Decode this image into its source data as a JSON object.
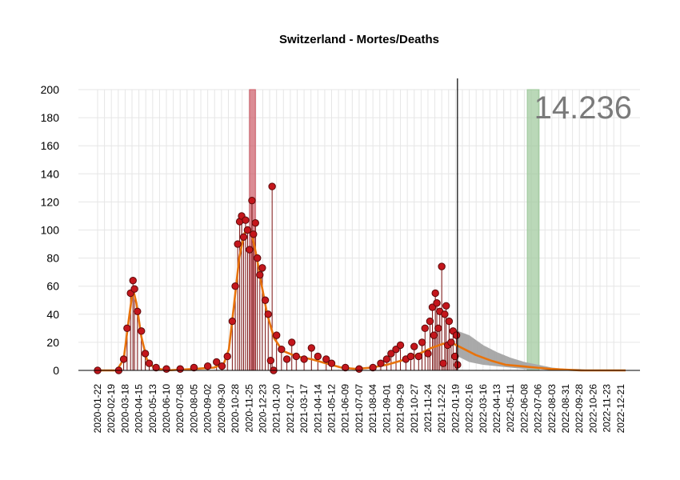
{
  "chart_data": {
    "type": "scatter",
    "title": "Switzerland - Mortes/Deaths",
    "xlabel": "",
    "ylabel": "",
    "ylim": [
      0,
      200
    ],
    "yticks": [
      0,
      20,
      40,
      60,
      80,
      100,
      120,
      140,
      160,
      180,
      200
    ],
    "xlim": [
      "2020-01-22",
      "2022-12-31"
    ],
    "xticks": [
      "2020-01-22",
      "2020-02-19",
      "2020-03-18",
      "2020-04-15",
      "2020-05-13",
      "2020-06-10",
      "2020-07-08",
      "2020-08-05",
      "2020-09-02",
      "2020-09-30",
      "2020-10-28",
      "2020-11-25",
      "2020-12-23",
      "2021-01-20",
      "2021-02-17",
      "2021-03-17",
      "2021-04-14",
      "2021-05-12",
      "2021-06-09",
      "2021-07-07",
      "2021-08-04",
      "2021-09-01",
      "2021-09-29",
      "2021-10-27",
      "2021-11-24",
      "2021-12-22",
      "2022-01-19",
      "2022-02-16",
      "2022-03-16",
      "2022-04-13",
      "2022-05-11",
      "2022-06-08",
      "2022-07-06",
      "2022-08-03",
      "2022-08-31",
      "2022-09-28",
      "2022-10-26",
      "2022-11-23",
      "2022-12-21"
    ],
    "grid": true,
    "last_observed_date": "2022-01-23",
    "annotation_value": "14.236",
    "highlight_peak_band": {
      "start": "2020-11-26",
      "end": "2020-12-08",
      "color": "#cc5b66"
    },
    "highlight_forecast_band": {
      "start": "2022-06-14",
      "end": "2022-07-08",
      "color": "#9cc89a"
    },
    "observed_daily_deaths": [
      {
        "date": "2020-01-22",
        "value": 0
      },
      {
        "date": "2020-03-05",
        "value": 0
      },
      {
        "date": "2020-03-15",
        "value": 8
      },
      {
        "date": "2020-03-22",
        "value": 30
      },
      {
        "date": "2020-03-29",
        "value": 55
      },
      {
        "date": "2020-04-03",
        "value": 64
      },
      {
        "date": "2020-04-06",
        "value": 58
      },
      {
        "date": "2020-04-12",
        "value": 42
      },
      {
        "date": "2020-04-20",
        "value": 28
      },
      {
        "date": "2020-04-28",
        "value": 12
      },
      {
        "date": "2020-05-06",
        "value": 5
      },
      {
        "date": "2020-05-20",
        "value": 2
      },
      {
        "date": "2020-06-10",
        "value": 1
      },
      {
        "date": "2020-07-08",
        "value": 1
      },
      {
        "date": "2020-08-05",
        "value": 2
      },
      {
        "date": "2020-09-02",
        "value": 3
      },
      {
        "date": "2020-09-20",
        "value": 6
      },
      {
        "date": "2020-10-01",
        "value": 3
      },
      {
        "date": "2020-10-12",
        "value": 10
      },
      {
        "date": "2020-10-22",
        "value": 35
      },
      {
        "date": "2020-10-28",
        "value": 60
      },
      {
        "date": "2020-11-02",
        "value": 90
      },
      {
        "date": "2020-11-06",
        "value": 106
      },
      {
        "date": "2020-11-10",
        "value": 110
      },
      {
        "date": "2020-11-14",
        "value": 95
      },
      {
        "date": "2020-11-18",
        "value": 107
      },
      {
        "date": "2020-11-22",
        "value": 100
      },
      {
        "date": "2020-11-26",
        "value": 86
      },
      {
        "date": "2020-12-01",
        "value": 121
      },
      {
        "date": "2020-12-04",
        "value": 97
      },
      {
        "date": "2020-12-08",
        "value": 105
      },
      {
        "date": "2020-12-12",
        "value": 80
      },
      {
        "date": "2020-12-17",
        "value": 68
      },
      {
        "date": "2020-12-22",
        "value": 73
      },
      {
        "date": "2020-12-28",
        "value": 50
      },
      {
        "date": "2021-01-03",
        "value": 40
      },
      {
        "date": "2021-01-08",
        "value": 7
      },
      {
        "date": "2021-01-11",
        "value": 131
      },
      {
        "date": "2021-01-14",
        "value": 0
      },
      {
        "date": "2021-01-20",
        "value": 25
      },
      {
        "date": "2021-01-30",
        "value": 15
      },
      {
        "date": "2021-02-10",
        "value": 8
      },
      {
        "date": "2021-02-20",
        "value": 20
      },
      {
        "date": "2021-03-01",
        "value": 10
      },
      {
        "date": "2021-03-17",
        "value": 8
      },
      {
        "date": "2021-04-01",
        "value": 16
      },
      {
        "date": "2021-04-14",
        "value": 10
      },
      {
        "date": "2021-05-01",
        "value": 8
      },
      {
        "date": "2021-05-12",
        "value": 5
      },
      {
        "date": "2021-06-09",
        "value": 2
      },
      {
        "date": "2021-07-07",
        "value": 1
      },
      {
        "date": "2021-08-04",
        "value": 2
      },
      {
        "date": "2021-08-20",
        "value": 5
      },
      {
        "date": "2021-09-01",
        "value": 8
      },
      {
        "date": "2021-09-10",
        "value": 12
      },
      {
        "date": "2021-09-20",
        "value": 15
      },
      {
        "date": "2021-09-29",
        "value": 18
      },
      {
        "date": "2021-10-10",
        "value": 8
      },
      {
        "date": "2021-10-20",
        "value": 10
      },
      {
        "date": "2021-10-27",
        "value": 17
      },
      {
        "date": "2021-11-05",
        "value": 10
      },
      {
        "date": "2021-11-12",
        "value": 20
      },
      {
        "date": "2021-11-18",
        "value": 30
      },
      {
        "date": "2021-11-24",
        "value": 12
      },
      {
        "date": "2021-11-28",
        "value": 35
      },
      {
        "date": "2021-12-03",
        "value": 45
      },
      {
        "date": "2021-12-06",
        "value": 25
      },
      {
        "date": "2021-12-09",
        "value": 55
      },
      {
        "date": "2021-12-12",
        "value": 48
      },
      {
        "date": "2021-12-15",
        "value": 30
      },
      {
        "date": "2021-12-18",
        "value": 42
      },
      {
        "date": "2021-12-22",
        "value": 74
      },
      {
        "date": "2021-12-25",
        "value": 5
      },
      {
        "date": "2021-12-28",
        "value": 40
      },
      {
        "date": "2021-12-31",
        "value": 46
      },
      {
        "date": "2022-01-03",
        "value": 18
      },
      {
        "date": "2022-01-06",
        "value": 35
      },
      {
        "date": "2022-01-10",
        "value": 20
      },
      {
        "date": "2022-01-14",
        "value": 28
      },
      {
        "date": "2022-01-18",
        "value": 10
      },
      {
        "date": "2022-01-21",
        "value": 25
      },
      {
        "date": "2022-01-23",
        "value": 4
      }
    ],
    "series": [
      {
        "type": "line",
        "color": "#e8730c",
        "values": [
          {
            "date": "2020-01-22",
            "value": 0
          },
          {
            "date": "2020-03-01",
            "value": 0
          },
          {
            "date": "2020-03-15",
            "value": 8
          },
          {
            "date": "2020-03-25",
            "value": 35
          },
          {
            "date": "2020-04-03",
            "value": 58
          },
          {
            "date": "2020-04-10",
            "value": 48
          },
          {
            "date": "2020-04-20",
            "value": 24
          },
          {
            "date": "2020-05-01",
            "value": 8
          },
          {
            "date": "2020-05-15",
            "value": 2
          },
          {
            "date": "2020-06-10",
            "value": 0
          },
          {
            "date": "2020-08-05",
            "value": 1
          },
          {
            "date": "2020-09-15",
            "value": 2
          },
          {
            "date": "2020-10-05",
            "value": 5
          },
          {
            "date": "2020-10-15",
            "value": 15
          },
          {
            "date": "2020-10-25",
            "value": 45
          },
          {
            "date": "2020-11-05",
            "value": 80
          },
          {
            "date": "2020-11-15",
            "value": 97
          },
          {
            "date": "2020-11-22",
            "value": 102
          },
          {
            "date": "2020-11-30",
            "value": 98
          },
          {
            "date": "2020-12-10",
            "value": 82
          },
          {
            "date": "2020-12-20",
            "value": 62
          },
          {
            "date": "2021-01-01",
            "value": 40
          },
          {
            "date": "2021-01-15",
            "value": 23
          },
          {
            "date": "2021-02-01",
            "value": 14
          },
          {
            "date": "2021-03-01",
            "value": 10
          },
          {
            "date": "2021-04-01",
            "value": 8
          },
          {
            "date": "2021-05-01",
            "value": 5
          },
          {
            "date": "2021-06-01",
            "value": 2
          },
          {
            "date": "2021-07-01",
            "value": 1
          },
          {
            "date": "2021-08-01",
            "value": 2
          },
          {
            "date": "2021-09-01",
            "value": 4
          },
          {
            "date": "2021-10-01",
            "value": 7
          },
          {
            "date": "2021-11-01",
            "value": 11
          },
          {
            "date": "2021-12-01",
            "value": 16
          },
          {
            "date": "2021-12-25",
            "value": 19
          },
          {
            "date": "2022-01-15",
            "value": 19
          },
          {
            "date": "2022-02-01",
            "value": 16
          },
          {
            "date": "2022-03-01",
            "value": 11
          },
          {
            "date": "2022-04-01",
            "value": 7
          },
          {
            "date": "2022-05-01",
            "value": 4
          },
          {
            "date": "2022-06-01",
            "value": 3
          },
          {
            "date": "2022-07-01",
            "value": 2
          },
          {
            "date": "2022-08-01",
            "value": 1
          },
          {
            "date": "2022-10-01",
            "value": 0
          },
          {
            "date": "2022-12-31",
            "value": 0
          }
        ]
      },
      {
        "type": "forecast-band",
        "color": "#a9a9a9",
        "values": [
          {
            "date": "2022-01-24",
            "low": 10,
            "high": 28
          },
          {
            "date": "2022-02-16",
            "low": 6,
            "high": 25
          },
          {
            "date": "2022-03-16",
            "low": 4,
            "high": 18
          },
          {
            "date": "2022-04-13",
            "low": 3,
            "high": 13
          },
          {
            "date": "2022-05-11",
            "low": 2,
            "high": 9
          },
          {
            "date": "2022-06-08",
            "low": 1,
            "high": 6
          },
          {
            "date": "2022-07-06",
            "low": 1,
            "high": 4
          },
          {
            "date": "2022-08-03",
            "low": 0,
            "high": 2
          },
          {
            "date": "2022-08-31",
            "low": 0,
            "high": 1
          },
          {
            "date": "2022-09-28",
            "low": 0,
            "high": 1
          },
          {
            "date": "2022-10-26",
            "low": 0,
            "high": 0
          },
          {
            "date": "2022-12-31",
            "low": 0,
            "high": 0
          }
        ]
      }
    ]
  }
}
